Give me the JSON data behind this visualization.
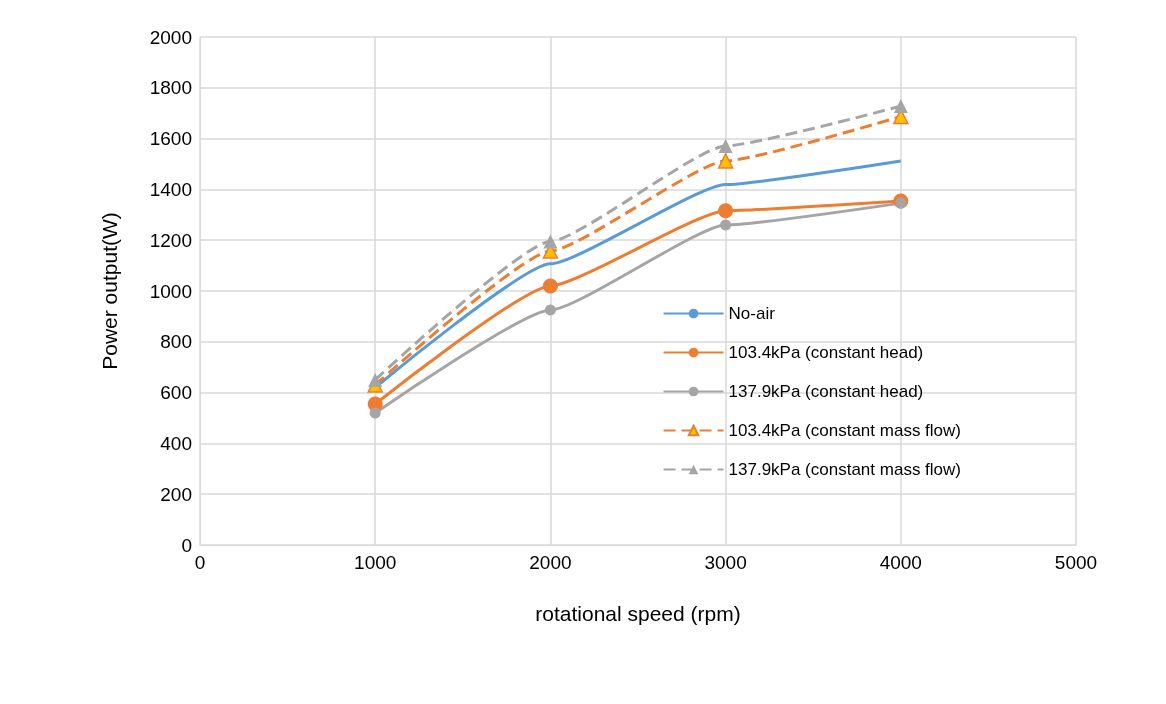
{
  "chart_data": {
    "type": "line",
    "xlabel": "rotational speed (rpm)",
    "ylabel": "Power output(W)",
    "x": [
      1000,
      2000,
      3000,
      4000
    ],
    "xlim": [
      0,
      5000
    ],
    "xticks": [
      0,
      1000,
      2000,
      3000,
      4000,
      5000
    ],
    "ylim": [
      0,
      2000
    ],
    "yticks": [
      0,
      200,
      400,
      600,
      800,
      1000,
      1200,
      1400,
      1600,
      1800,
      2000
    ],
    "grid": true,
    "legend": "right",
    "series": [
      {
        "name": "No-air",
        "color": "#5b9bd5",
        "values": [
          620,
          1107,
          1419,
          1512
        ],
        "marker": "none",
        "line_style": "solid"
      },
      {
        "name": "103.4kPa (constant head)",
        "color": "#ed7d31",
        "values": [
          555,
          1020,
          1316,
          1354
        ],
        "marker": "circle",
        "line_style": "solid"
      },
      {
        "name": "137.9kPa (constant head)",
        "color": "#a5a5a5",
        "values": [
          520,
          925,
          1260,
          1346
        ],
        "marker": "circle",
        "line_style": "solid"
      },
      {
        "name": "103.4kPa (constant mass flow)",
        "color": "#ed7d31",
        "values": [
          630,
          1157,
          1512,
          1687
        ],
        "marker": "triangle",
        "line_style": "dashed"
      },
      {
        "name": "137.9kPa (constant mass flow)",
        "color": "#a5a5a5",
        "values": [
          650,
          1195,
          1571,
          1728
        ],
        "marker": "triangle",
        "line_style": "dashed"
      }
    ]
  }
}
